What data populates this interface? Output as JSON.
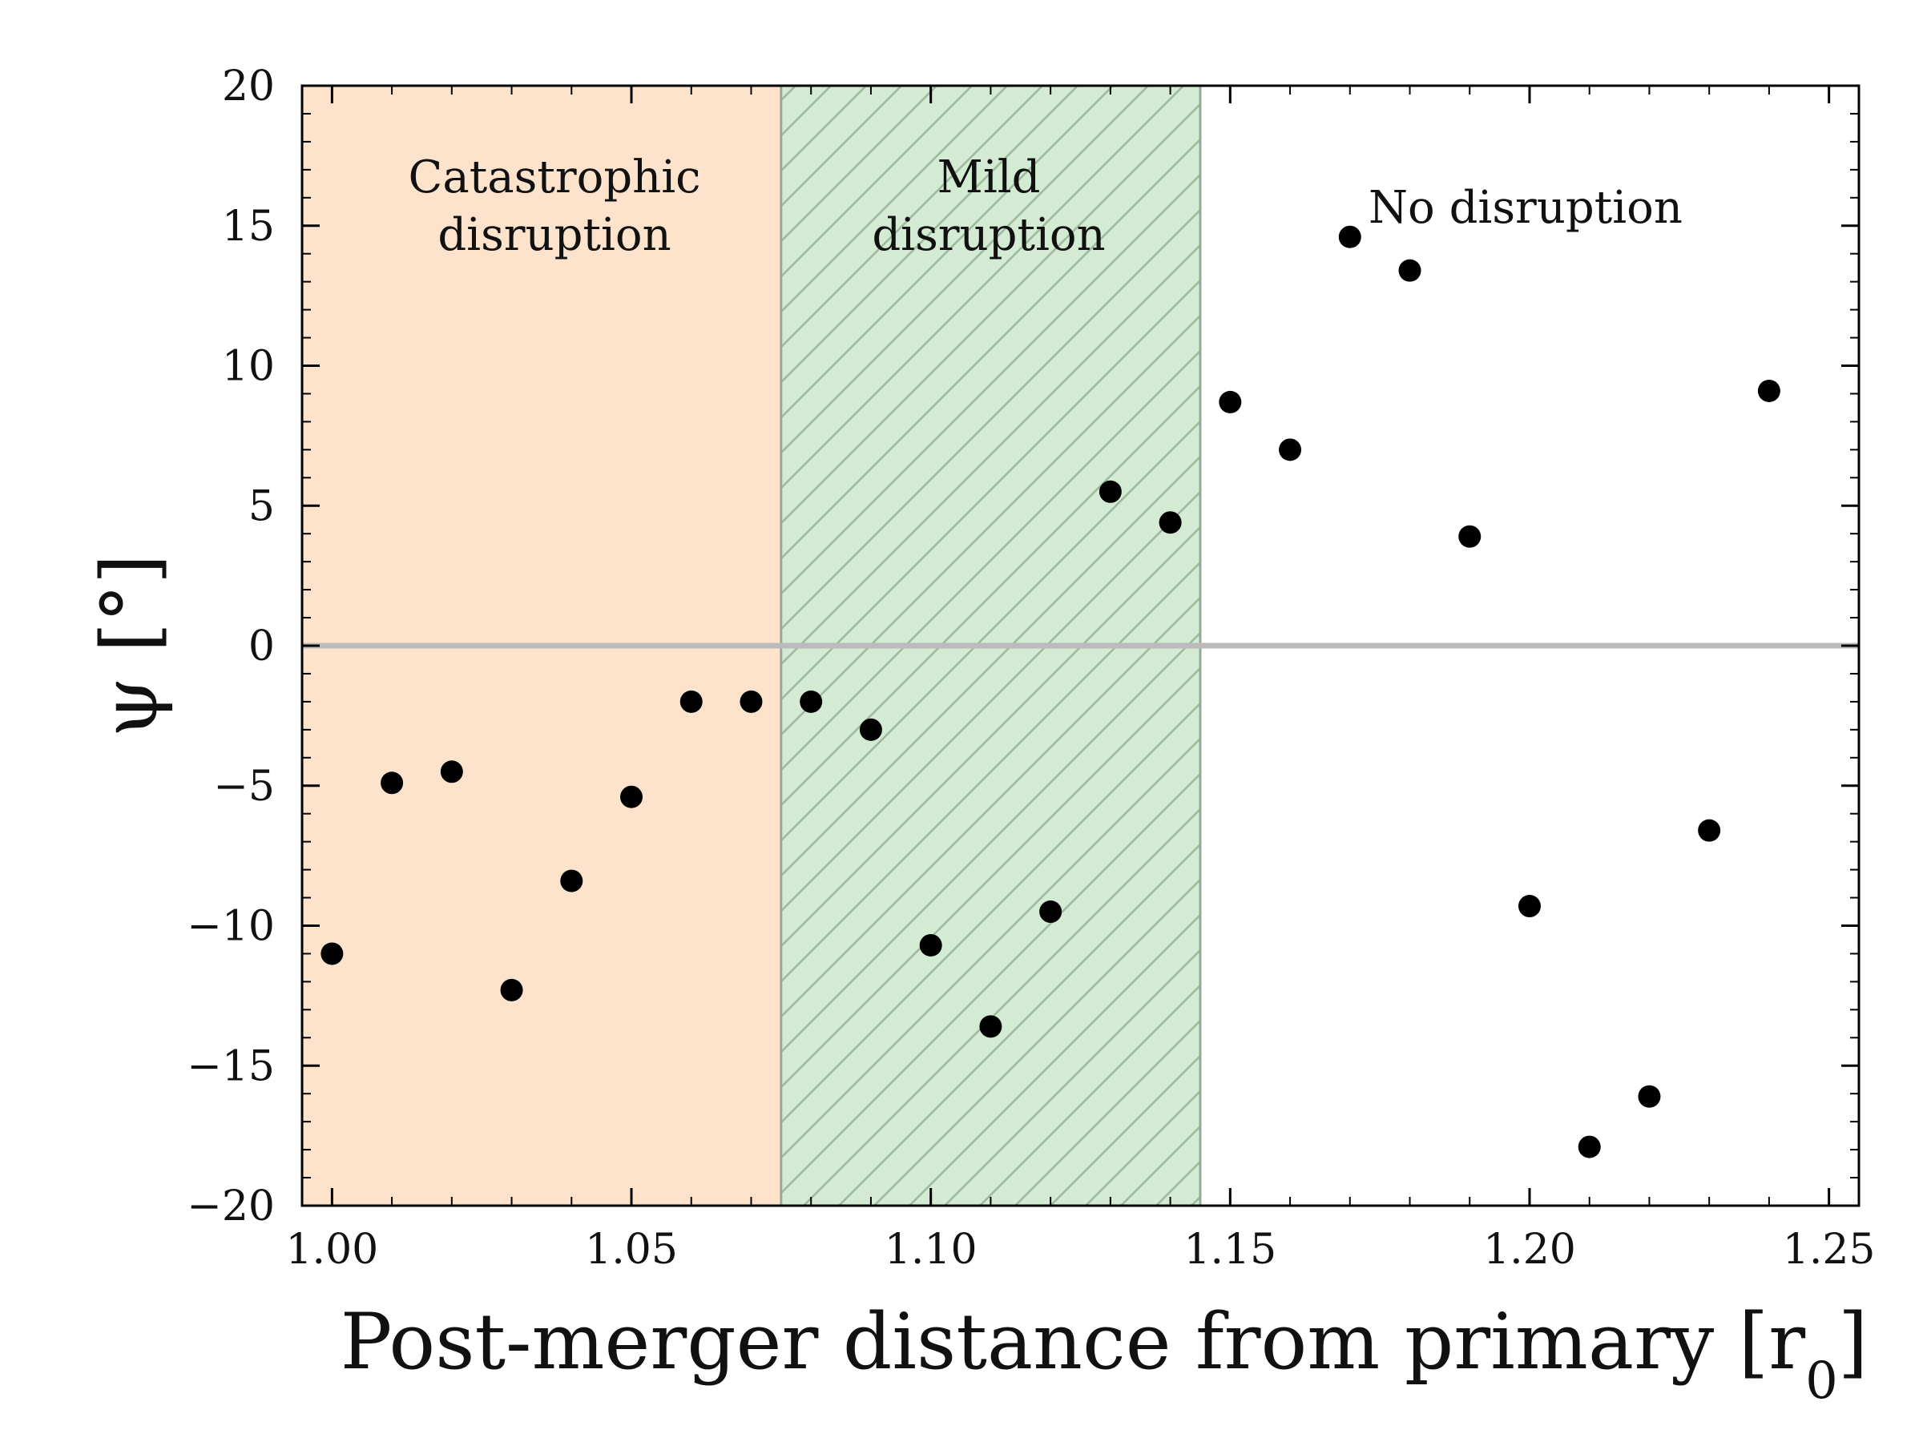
{
  "chart_data": {
    "type": "scatter",
    "title": "",
    "xlabel": "Post-merger distance from primary [r",
    "xlabel_sub": "0",
    "xlabel_close": "]",
    "ylabel": "ψ [°]",
    "xlim": [
      0.995,
      1.255
    ],
    "ylim": [
      -20,
      20
    ],
    "xticks": [
      1.0,
      1.05,
      1.1,
      1.15,
      1.2,
      1.25
    ],
    "xtick_labels": [
      "1.00",
      "1.05",
      "1.10",
      "1.15",
      "1.20",
      "1.25"
    ],
    "yticks": [
      -20,
      -15,
      -10,
      -5,
      0,
      5,
      10,
      15,
      20
    ],
    "ytick_labels": [
      "−20",
      "−15",
      "−10",
      "−5",
      "0",
      "5",
      "10",
      "15",
      "20"
    ],
    "grid": false,
    "reference_line": {
      "y": 0,
      "color": "#bbbbbb"
    },
    "regions": [
      {
        "label_lines": [
          "Catastrophic",
          "disruption"
        ],
        "x_start": 0.995,
        "x_end": 1.075,
        "color": "#fde3cc",
        "hatch": false
      },
      {
        "label_lines": [
          "Mild",
          "disruption"
        ],
        "x_start": 1.075,
        "x_end": 1.145,
        "color": "#d4ebd3",
        "hatch": true
      },
      {
        "label_lines": [
          "No disruption"
        ],
        "x_start": 1.145,
        "x_end": 1.255,
        "color": "#ffffff",
        "hatch": false
      }
    ],
    "series": [
      {
        "color": "#000000",
        "points": [
          {
            "x": 1.0,
            "y": -11.0
          },
          {
            "x": 1.01,
            "y": -4.9
          },
          {
            "x": 1.02,
            "y": -4.5
          },
          {
            "x": 1.03,
            "y": -12.3
          },
          {
            "x": 1.04,
            "y": -8.4
          },
          {
            "x": 1.05,
            "y": -5.4
          },
          {
            "x": 1.06,
            "y": -2.0
          },
          {
            "x": 1.07,
            "y": -2.0
          },
          {
            "x": 1.08,
            "y": -2.0
          },
          {
            "x": 1.09,
            "y": -3.0
          },
          {
            "x": 1.1,
            "y": -10.7
          },
          {
            "x": 1.11,
            "y": -13.6
          },
          {
            "x": 1.12,
            "y": -9.5
          },
          {
            "x": 1.13,
            "y": 5.5
          },
          {
            "x": 1.14,
            "y": 4.4
          },
          {
            "x": 1.15,
            "y": 8.7
          },
          {
            "x": 1.16,
            "y": 7.0
          },
          {
            "x": 1.17,
            "y": 14.6
          },
          {
            "x": 1.18,
            "y": 13.4
          },
          {
            "x": 1.19,
            "y": 3.9
          },
          {
            "x": 1.2,
            "y": -9.3
          },
          {
            "x": 1.21,
            "y": -17.9
          },
          {
            "x": 1.22,
            "y": -16.1
          },
          {
            "x": 1.23,
            "y": -6.6
          },
          {
            "x": 1.24,
            "y": 9.1
          }
        ]
      }
    ]
  }
}
